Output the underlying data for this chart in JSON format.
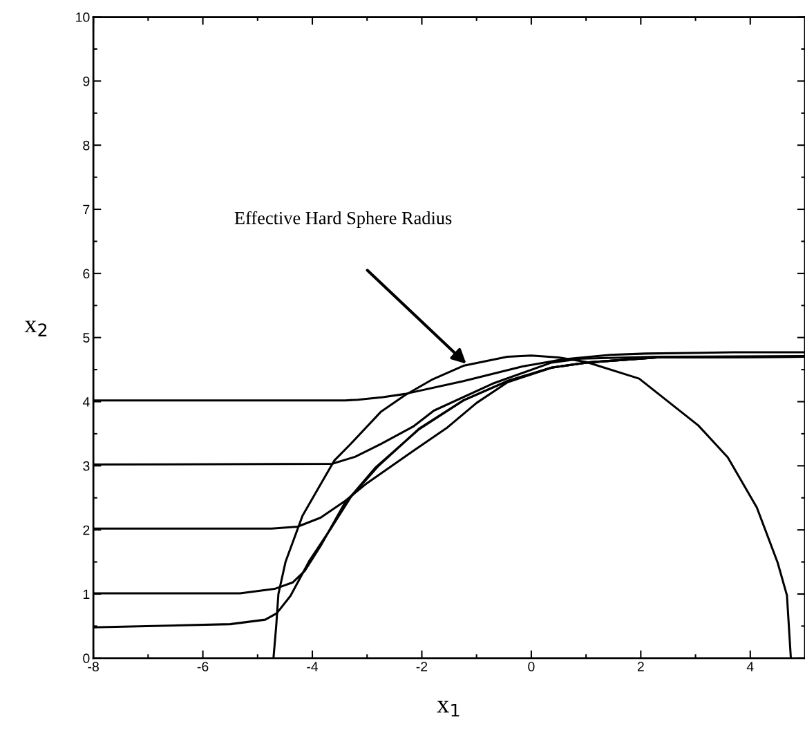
{
  "chart_data": {
    "type": "line",
    "xlabel": "x$_{1}$",
    "ylabel": "x$_{2}$",
    "xlim": [
      -8,
      5
    ],
    "ylim": [
      0,
      10
    ],
    "xticks": [
      -8,
      -6,
      -4,
      -2,
      0,
      2,
      4
    ],
    "yticks": [
      0,
      1,
      2,
      3,
      4,
      5,
      6,
      7,
      8,
      9,
      10
    ],
    "grid": false,
    "marker": "none",
    "line_style": "solid",
    "annotations": [
      "Effective Hard Sphere Radius"
    ],
    "series": [
      {
        "color": "#000000",
        "x": [
          -4.71,
          -4.66,
          -4.62,
          -4.49,
          -4.18,
          -3.89,
          -3.6,
          -3.3,
          -2.75,
          -2.31,
          -1.8,
          -1.24,
          -0.44,
          0,
          0.5,
          1.0,
          1.97,
          3.05,
          3.59,
          4.12,
          4.5,
          4.67,
          4.74
        ],
        "values": [
          0,
          0.5,
          1.0,
          1.5,
          2.22,
          2.65,
          3.08,
          3.34,
          3.84,
          4.1,
          4.35,
          4.56,
          4.7,
          4.72,
          4.69,
          4.62,
          4.36,
          3.63,
          3.13,
          2.35,
          1.49,
          0.98,
          0.02
        ]
      },
      {
        "color": "#000000",
        "x": [
          -8,
          -3.4,
          -3.17,
          -2.71,
          -2.31,
          -1.24,
          -0.16,
          0.58,
          1.44,
          2.09,
          3.69,
          5.0
        ],
        "values": [
          4.02,
          4.02,
          4.03,
          4.07,
          4.12,
          4.32,
          4.55,
          4.66,
          4.73,
          4.75,
          4.77,
          4.77
        ]
      },
      {
        "color": "#000000",
        "x": [
          -8,
          -3.64,
          -3.22,
          -2.75,
          -2.16,
          -1.78,
          -0.71,
          0.37,
          0.91,
          2.25,
          5.0
        ],
        "values": [
          3.02,
          3.03,
          3.14,
          3.34,
          3.61,
          3.86,
          4.28,
          4.61,
          4.67,
          4.7,
          4.71
        ]
      },
      {
        "color": "#000000",
        "x": [
          -8,
          -4.74,
          -4.27,
          -3.85,
          -3.42,
          -3.0,
          -2.16,
          -1.53,
          -1.0,
          -0.44,
          0.37,
          1.01,
          2.3,
          5.0
        ],
        "values": [
          2.02,
          2.02,
          2.05,
          2.19,
          2.44,
          2.73,
          3.23,
          3.6,
          3.98,
          4.3,
          4.53,
          4.61,
          4.69,
          4.7
        ]
      },
      {
        "color": "#000000",
        "x": [
          -8,
          -5.32,
          -4.69,
          -4.36,
          -4.14,
          -3.85,
          -3.42,
          -2.85,
          -2.05,
          -1.24,
          -0.44,
          0.37,
          1.01,
          2.3,
          5.0
        ],
        "values": [
          1.01,
          1.01,
          1.08,
          1.18,
          1.36,
          1.75,
          2.4,
          2.97,
          3.57,
          4.02,
          4.32,
          4.53,
          4.61,
          4.69,
          4.7
        ]
      },
      {
        "color": "#000000",
        "x": [
          -8,
          -5.5,
          -4.86,
          -4.65,
          -4.4,
          -4.06,
          -3.64,
          -3.3,
          -2.79,
          -2.05,
          -1.24,
          -0.44,
          0.37,
          1.01,
          2.3,
          5.0
        ],
        "values": [
          0.48,
          0.53,
          0.6,
          0.7,
          0.97,
          1.51,
          2.05,
          2.51,
          3.0,
          3.58,
          4.02,
          4.32,
          4.53,
          4.61,
          4.69,
          4.7
        ]
      }
    ]
  }
}
